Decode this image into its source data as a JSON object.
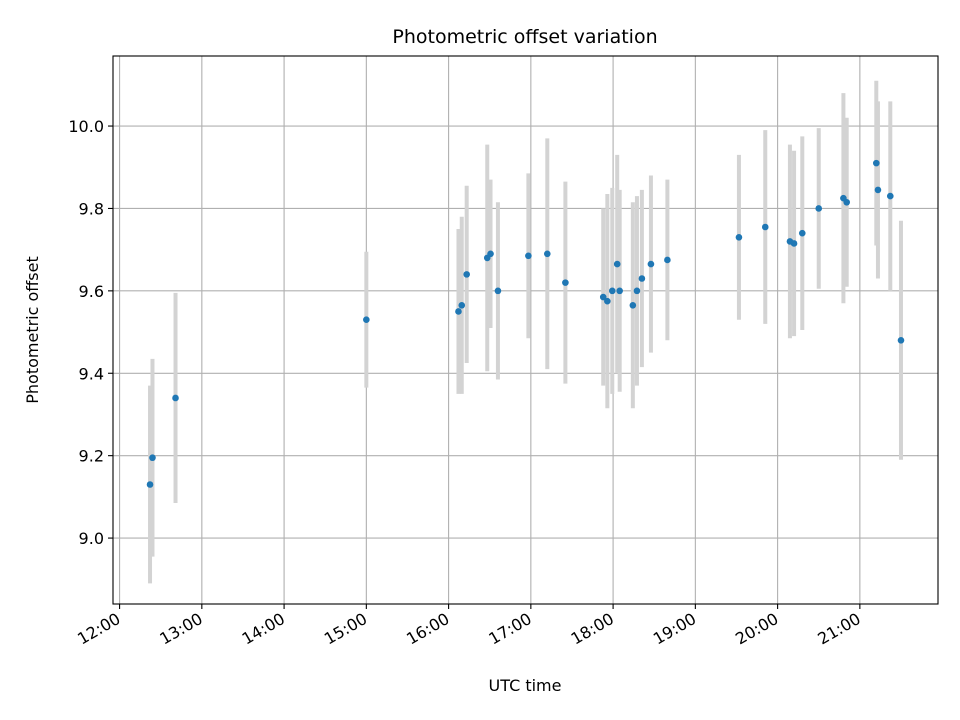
{
  "chart_data": {
    "type": "scatter",
    "title": "Photometric offset variation",
    "xlabel": "UTC time",
    "ylabel": "Photometric offset",
    "x_unit": "hours since 00:00 UTC",
    "xlim": [
      11.92,
      21.95
    ],
    "ylim": [
      8.84,
      10.17
    ],
    "x_ticks": [
      12,
      13,
      14,
      15,
      16,
      17,
      18,
      19,
      20,
      21
    ],
    "x_tick_labels": [
      "12:00",
      "13:00",
      "14:00",
      "15:00",
      "16:00",
      "17:00",
      "18:00",
      "19:00",
      "20:00",
      "21:00"
    ],
    "y_ticks": [
      9.0,
      9.2,
      9.4,
      9.6,
      9.8,
      10.0
    ],
    "y_tick_labels": [
      "9.0",
      "9.2",
      "9.4",
      "9.6",
      "9.8",
      "10.0"
    ],
    "grid": true,
    "colors": {
      "marker": "#1f77b4",
      "errorbar": "#d3d3d3",
      "grid": "#b0b0b0"
    },
    "points": [
      {
        "x": 12.37,
        "y": 9.13,
        "err": 0.24
      },
      {
        "x": 12.4,
        "y": 9.195,
        "err": 0.24
      },
      {
        "x": 12.68,
        "y": 9.34,
        "err": 0.255
      },
      {
        "x": 15.0,
        "y": 9.53,
        "err": 0.165
      },
      {
        "x": 16.12,
        "y": 9.55,
        "err": 0.2
      },
      {
        "x": 16.16,
        "y": 9.565,
        "err": 0.215
      },
      {
        "x": 16.22,
        "y": 9.64,
        "err": 0.215
      },
      {
        "x": 16.47,
        "y": 9.68,
        "err": 0.275
      },
      {
        "x": 16.51,
        "y": 9.69,
        "err": 0.18
      },
      {
        "x": 16.6,
        "y": 9.6,
        "err": 0.215
      },
      {
        "x": 16.97,
        "y": 9.685,
        "err": 0.2
      },
      {
        "x": 17.2,
        "y": 9.69,
        "err": 0.28
      },
      {
        "x": 17.42,
        "y": 9.62,
        "err": 0.245
      },
      {
        "x": 17.88,
        "y": 9.585,
        "err": 0.215
      },
      {
        "x": 17.93,
        "y": 9.575,
        "err": 0.26
      },
      {
        "x": 17.99,
        "y": 9.6,
        "err": 0.25
      },
      {
        "x": 18.05,
        "y": 9.665,
        "err": 0.265
      },
      {
        "x": 18.08,
        "y": 9.6,
        "err": 0.245
      },
      {
        "x": 18.24,
        "y": 9.565,
        "err": 0.25
      },
      {
        "x": 18.29,
        "y": 9.6,
        "err": 0.23
      },
      {
        "x": 18.35,
        "y": 9.63,
        "err": 0.215
      },
      {
        "x": 18.46,
        "y": 9.665,
        "err": 0.215
      },
      {
        "x": 18.66,
        "y": 9.675,
        "err": 0.195
      },
      {
        "x": 19.53,
        "y": 9.73,
        "err": 0.2
      },
      {
        "x": 19.85,
        "y": 9.755,
        "err": 0.235
      },
      {
        "x": 20.15,
        "y": 9.72,
        "err": 0.235
      },
      {
        "x": 20.2,
        "y": 9.715,
        "err": 0.225
      },
      {
        "x": 20.3,
        "y": 9.74,
        "err": 0.235
      },
      {
        "x": 20.5,
        "y": 9.8,
        "err": 0.195
      },
      {
        "x": 20.8,
        "y": 9.825,
        "err": 0.255
      },
      {
        "x": 20.84,
        "y": 9.815,
        "err": 0.205
      },
      {
        "x": 21.2,
        "y": 9.91,
        "err": 0.2
      },
      {
        "x": 21.22,
        "y": 9.845,
        "err": 0.215
      },
      {
        "x": 21.37,
        "y": 9.83,
        "err": 0.23
      },
      {
        "x": 21.5,
        "y": 9.48,
        "err": 0.29
      }
    ]
  }
}
